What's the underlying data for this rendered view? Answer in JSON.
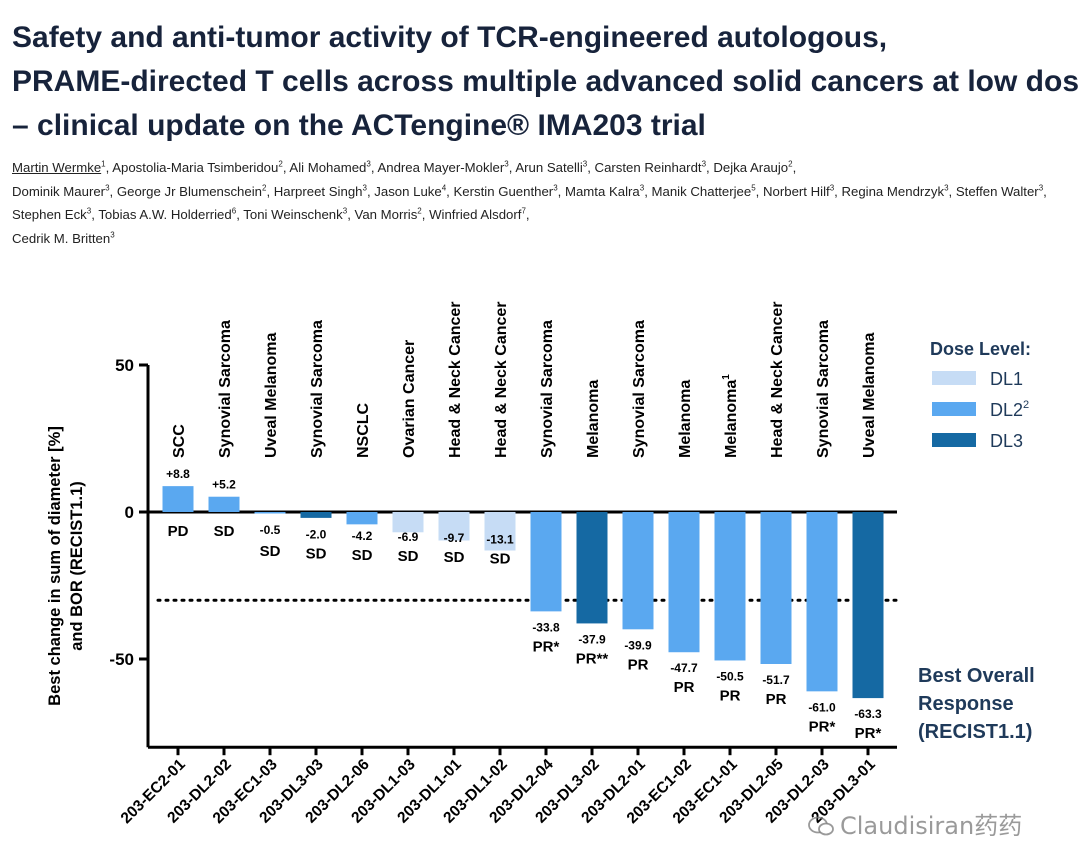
{
  "title_lines": [
    "Safety and anti-tumor activity of TCR-engineered autologous,",
    "PRAME-directed T cells across multiple advanced solid cancers at low doses",
    " – clinical update on the ACTengine® IMA203 trial"
  ],
  "authors": [
    {
      "name": "Martin Wermke",
      "sup": "1",
      "first": true
    },
    {
      "name": "Apostolia-Maria Tsimberidou",
      "sup": "2"
    },
    {
      "name": "Ali Mohamed",
      "sup": "3"
    },
    {
      "name": "Andrea Mayer-Mokler",
      "sup": "3"
    },
    {
      "name": "Arun Satelli",
      "sup": "3"
    },
    {
      "name": "Carsten Reinhardt",
      "sup": "3"
    },
    {
      "name": "Dejka Araujo",
      "sup": "2"
    },
    {
      "name": "Dominik Maurer",
      "sup": "3"
    },
    {
      "name": "George Jr Blumenschein",
      "sup": "2"
    },
    {
      "name": "Harpreet Singh",
      "sup": "3"
    },
    {
      "name": "Jason Luke",
      "sup": "4"
    },
    {
      "name": "Kerstin Guenther",
      "sup": "3"
    },
    {
      "name": "Mamta Kalra",
      "sup": "3"
    },
    {
      "name": "Manik Chatterjee",
      "sup": "5"
    },
    {
      "name": "Norbert Hilf",
      "sup": "3"
    },
    {
      "name": "Regina Mendrzyk",
      "sup": "3"
    },
    {
      "name": "Steffen Walter",
      "sup": "3"
    },
    {
      "name": "Stephen Eck",
      "sup": "3"
    },
    {
      "name": "Tobias A.W. Holderried",
      "sup": "6"
    },
    {
      "name": "Toni Weinschenk",
      "sup": "3"
    },
    {
      "name": "Van Morris",
      "sup": "2"
    },
    {
      "name": "Winfried Alsdorf",
      "sup": "7"
    },
    {
      "name": "Cedrik M. Britten",
      "sup": "3"
    }
  ],
  "chart_data": {
    "type": "bar",
    "title": "",
    "ylabel_lines": [
      "Best change in sum of diameter [%]",
      "and BOR (RECIST1.1)"
    ],
    "ylim": [
      -80,
      50
    ],
    "yticks": [
      50,
      0,
      -50
    ],
    "reference_line": -30,
    "categories": [
      "203-EC2-01",
      "203-DL2-02",
      "203-EC1-03",
      "203-DL3-03",
      "203-DL2-06",
      "203-DL1-03",
      "203-DL1-01",
      "203-DL1-02",
      "203-DL2-04",
      "203-DL3-02",
      "203-DL2-01",
      "203-EC1-02",
      "203-EC1-01",
      "203-DL2-05",
      "203-DL2-03",
      "203-DL3-01"
    ],
    "indications": [
      "SCC",
      "Synovial Sarcoma",
      "Uveal Melanoma",
      "Synovial Sarcoma",
      "NSCLC",
      "Ovarian Cancer",
      "Head & Neck Cancer",
      "Head & Neck Cancer",
      "Synovial Sarcoma",
      "Melanoma",
      "Synovial Sarcoma",
      "Melanoma",
      "Melanoma",
      "Head & Neck Cancer",
      "Synovial Sarcoma",
      "Uveal Melanoma"
    ],
    "indication_sups": [
      "",
      "",
      "",
      "",
      "",
      "",
      "",
      "",
      "",
      "",
      "",
      "",
      "1",
      "",
      "",
      ""
    ],
    "values": [
      8.8,
      5.2,
      -0.5,
      -2.0,
      -4.2,
      -6.9,
      -9.7,
      -13.1,
      -33.8,
      -37.9,
      -39.9,
      -47.7,
      -50.5,
      -51.7,
      -61.0,
      -63.3
    ],
    "value_labels": [
      "+8.8",
      "+5.2",
      "-0.5",
      "-2.0",
      "-4.2",
      "-6.9",
      "-9.7",
      "-13.1",
      "-33.8",
      "-37.9",
      "-39.9",
      "-47.7",
      "-50.5",
      "-51.7",
      "-61.0",
      "-63.3"
    ],
    "bor": [
      "PD",
      "SD",
      "SD",
      "SD",
      "SD",
      "SD",
      "SD",
      "SD",
      "PR*",
      "PR**",
      "PR",
      "PR",
      "PR",
      "PR",
      "PR*",
      "PR*"
    ],
    "dose_level": [
      "DL2",
      "DL2",
      "DL2",
      "DL3",
      "DL2",
      "DL1",
      "DL1",
      "DL1",
      "DL2",
      "DL3",
      "DL2",
      "DL2",
      "DL2",
      "DL2",
      "DL2",
      "DL3"
    ],
    "legend": {
      "title": "Dose Level:",
      "position": "top-right",
      "entries": [
        {
          "key": "DL1",
          "label": "DL1",
          "sup": "",
          "color": "#c6dcf5"
        },
        {
          "key": "DL2",
          "label": "DL2",
          "sup": "2",
          "color": "#5aa8f0"
        },
        {
          "key": "DL3",
          "label": "DL3",
          "sup": "",
          "color": "#1569a3"
        }
      ]
    },
    "bor_caption": [
      "Best Overall",
      "Response",
      "(RECIST1.1)"
    ]
  },
  "watermark": "Claudisiran药药",
  "colors": {
    "title": "#17233b",
    "caption": "#1f3a5a",
    "axis": "#000000"
  }
}
